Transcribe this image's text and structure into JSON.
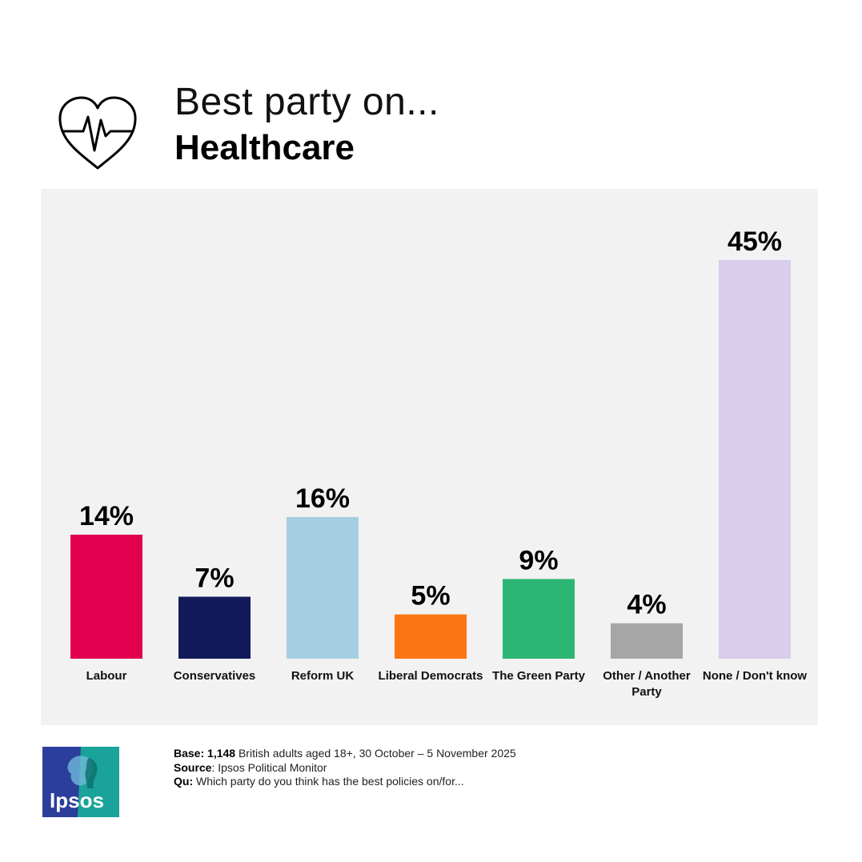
{
  "header": {
    "title_line1": "Best party on...",
    "title_line2": "Healthcare",
    "icon": "heart-pulse-icon"
  },
  "chart_data": {
    "type": "bar",
    "categories": [
      "Labour",
      "Conservatives",
      "Reform UK",
      "Liberal Democrats",
      "The Green Party",
      "Other / Another Party",
      "None / Don't know"
    ],
    "values": [
      14,
      7,
      16,
      5,
      9,
      4,
      45
    ],
    "value_labels": [
      "14%",
      "7%",
      "16%",
      "5%",
      "9%",
      "4%",
      "45%"
    ],
    "colors": [
      "#e3004f",
      "#131a5a",
      "#a6cee3",
      "#fb7512",
      "#2db673",
      "#a6a6a6",
      "#d9ccec"
    ],
    "unit": "%",
    "ylim": [
      0,
      45
    ],
    "grid": false,
    "legend": "none"
  },
  "footer": {
    "base_label": "Base:",
    "base_count": "1,148",
    "base_text": "British adults aged 18+,  30 October – 5 November 2025",
    "source_label": "Source",
    "source_text": ": Ipsos Political Monitor",
    "qu_label": "Qu:",
    "qu_text": "Which party do you think has the best policies on/for..."
  },
  "logo": {
    "text": "Ipsos",
    "colors": [
      "#2c3e9b",
      "#1aa39a"
    ]
  }
}
